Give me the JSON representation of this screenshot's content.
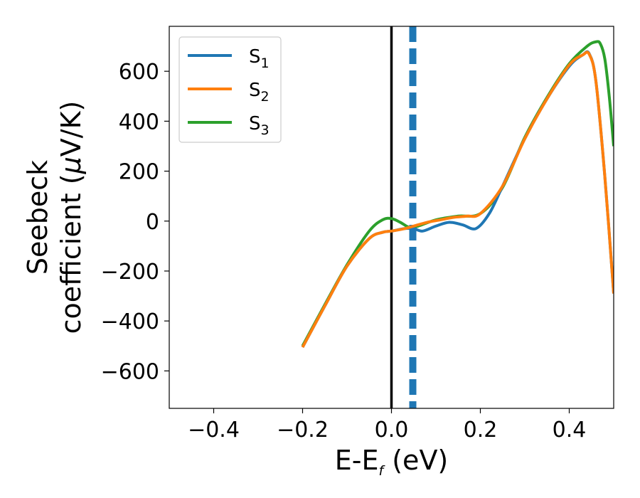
{
  "chart_data": {
    "type": "line",
    "xlabel": {
      "main": "E-E",
      "sub": "f",
      "unit": " (eV)"
    },
    "ylabel": {
      "line1": "Seebeck",
      "line2": "coefficient  (",
      "mu": "μ",
      "unit": "V/K)"
    },
    "xlim": [
      -0.5,
      0.5
    ],
    "ylim": [
      -750,
      780
    ],
    "x_ticks": [
      -0.4,
      -0.2,
      0.0,
      0.2,
      0.4
    ],
    "x_tick_labels": [
      "−0.4",
      "−0.2",
      "0.0",
      "0.2",
      "0.4"
    ],
    "y_ticks": [
      -600,
      -400,
      -200,
      0,
      200,
      400,
      600
    ],
    "y_tick_labels": [
      "−600",
      "−400",
      "−200",
      "0",
      "200",
      "400",
      "600"
    ],
    "grid": false,
    "legend_position": "top-left",
    "vertical_lines": [
      {
        "x": 0.0,
        "style": "solid",
        "color": "#000000"
      },
      {
        "x": 0.048,
        "style": "dashed",
        "color": "#1f77b4"
      }
    ],
    "series": [
      {
        "name": "S",
        "subscript": "1",
        "color": "#1f77b4",
        "x": [
          -0.2,
          -0.15,
          -0.1,
          -0.05,
          -0.02,
          0.0,
          0.03,
          0.05,
          0.07,
          0.1,
          0.13,
          0.16,
          0.19,
          0.22,
          0.25,
          0.3,
          0.35,
          0.4,
          0.43,
          0.445,
          0.46,
          0.48,
          0.5
        ],
        "y": [
          -505,
          -340,
          -180,
          -70,
          -45,
          -40,
          -30,
          -30,
          -40,
          -20,
          -5,
          -15,
          -30,
          30,
          140,
          330,
          490,
          620,
          665,
          670,
          560,
          180,
          -290
        ]
      },
      {
        "name": "S",
        "subscript": "2",
        "color": "#ff7f0e",
        "x": [
          -0.2,
          -0.15,
          -0.1,
          -0.05,
          -0.02,
          0.0,
          0.03,
          0.05,
          0.08,
          0.11,
          0.14,
          0.17,
          0.2,
          0.25,
          0.3,
          0.35,
          0.4,
          0.43,
          0.445,
          0.46,
          0.48,
          0.5
        ],
        "y": [
          -505,
          -340,
          -180,
          -70,
          -45,
          -40,
          -30,
          -20,
          -5,
          5,
          15,
          20,
          30,
          140,
          330,
          490,
          625,
          665,
          668,
          560,
          180,
          -290
        ]
      },
      {
        "name": "S",
        "subscript": "3",
        "color": "#2ca02c",
        "x": [
          -0.2,
          -0.15,
          -0.1,
          -0.05,
          -0.02,
          0.0,
          0.02,
          0.04,
          0.06,
          0.1,
          0.15,
          0.2,
          0.25,
          0.3,
          0.35,
          0.4,
          0.44,
          0.46,
          0.47,
          0.48,
          0.49,
          0.5
        ],
        "y": [
          -500,
          -335,
          -175,
          -40,
          5,
          10,
          -5,
          -25,
          -20,
          5,
          20,
          30,
          135,
          335,
          495,
          630,
          700,
          718,
          710,
          650,
          500,
          300
        ]
      }
    ]
  }
}
